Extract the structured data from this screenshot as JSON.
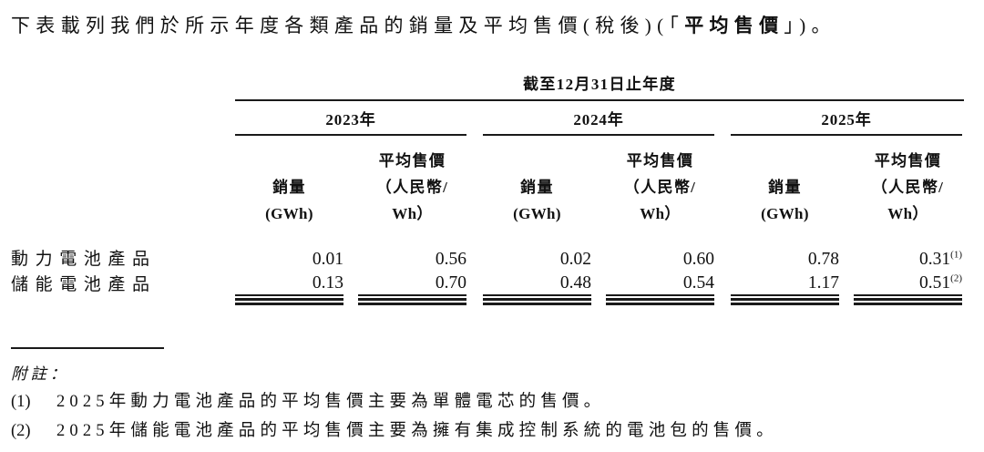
{
  "intro": {
    "prefix": "下表載列我們於所示年度各類產品的銷量及平均售價(稅後)(「",
    "emphasis": "平均售價",
    "suffix": "」)。"
  },
  "table": {
    "span_header": "截至12月31日止年度",
    "groups": [
      {
        "year": "2023年"
      },
      {
        "year": "2024年"
      },
      {
        "year": "2025年"
      }
    ],
    "col_headers": {
      "volume_line1": "銷量",
      "volume_line2": "(GWh)",
      "asp_line1": "平均售價",
      "asp_line2": "（人民幣/",
      "asp_line3": "Wh）"
    },
    "rows": [
      {
        "label": "動力電池產品",
        "values": [
          "0.01",
          "0.56",
          "0.02",
          "0.60",
          "0.78",
          "0.31"
        ],
        "footnote_ref": "(1)"
      },
      {
        "label": "儲能電池產品",
        "values": [
          "0.13",
          "0.70",
          "0.48",
          "0.54",
          "1.17",
          "0.51"
        ],
        "footnote_ref": "(2)"
      }
    ]
  },
  "footnotes": {
    "heading": "附註：",
    "items": [
      {
        "marker": "(1)",
        "text": "2025年動力電池產品的平均售價主要為單體電芯的售價。"
      },
      {
        "marker": "(2)",
        "text": "2025年儲能電池產品的平均售價主要為擁有集成控制系統的電池包的售價。"
      }
    ]
  }
}
